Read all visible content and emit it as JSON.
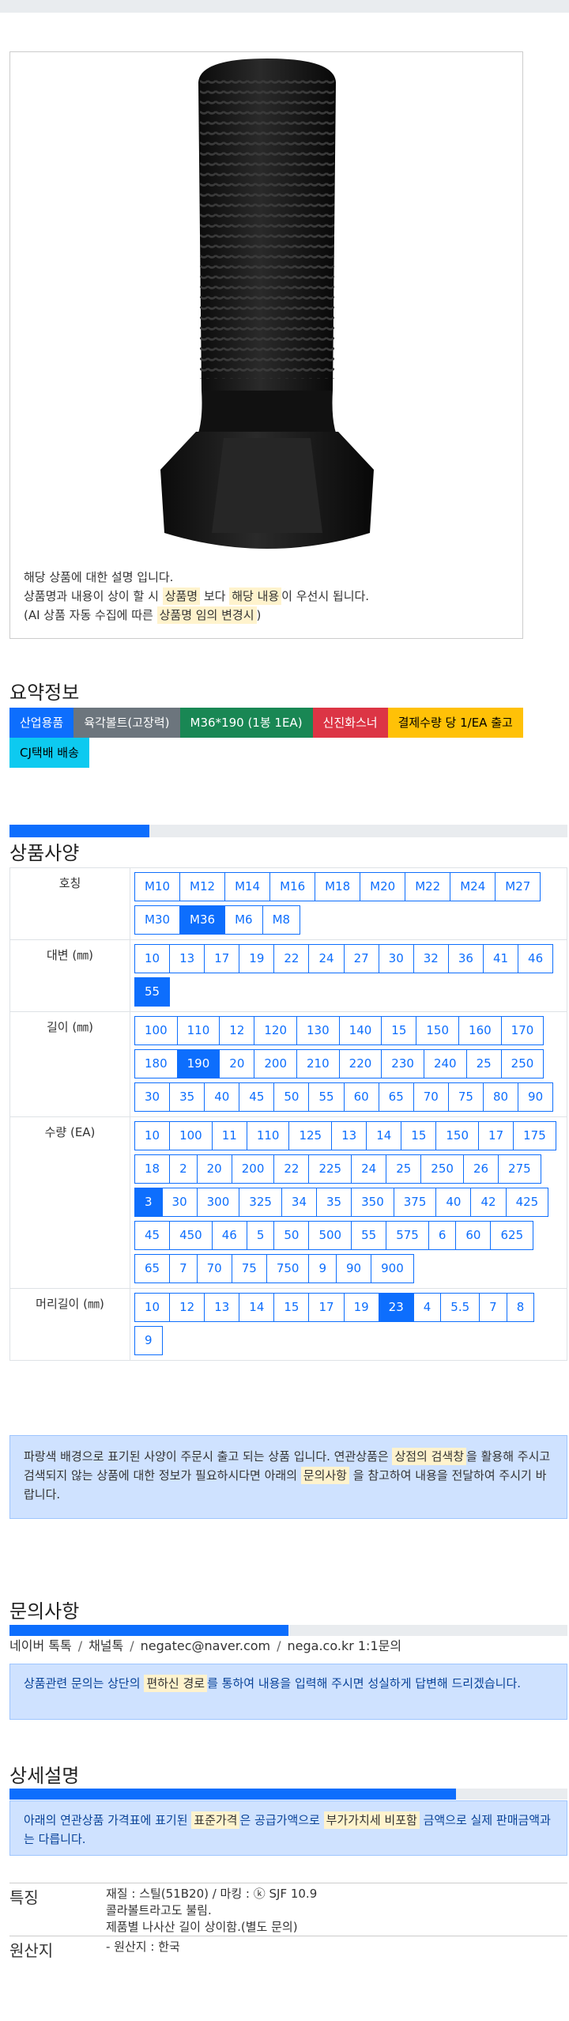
{
  "product_image": {
    "alt": "hex-bolt"
  },
  "notice": {
    "line1": "해당 상품에 대한 설명 입니다.",
    "line2_a": "상품명과 내용이 상이 할 시 ",
    "line2_hl1": "상품명",
    "line2_b": " 보다 ",
    "line2_hl2": "해당 내용",
    "line2_c": "이 우선시 됩니다.",
    "line3_a": "(AI 상품 자동 수집에 따른 ",
    "line3_hl": "상품명 임의 변경시",
    "line3_b": ")"
  },
  "summary": {
    "title": "요약정보",
    "badges": [
      {
        "label": "산업용품",
        "color": "#0d6efd"
      },
      {
        "label": "육각볼트(고장력)",
        "color": "#6c757d"
      },
      {
        "label": "M36*190 (1봉 1EA)",
        "color": "#198754"
      },
      {
        "label": "신진화스너",
        "color": "#dc3545"
      },
      {
        "label": "결제수량 당 1/EA 출고",
        "color": "#ffc107"
      },
      {
        "label": "CJ택배 배송",
        "color": "#0dcaf0"
      }
    ]
  },
  "spec": {
    "title": "상품사양",
    "progress_percent": 25,
    "rows": [
      {
        "label": "호칭",
        "selected": "M36",
        "options": [
          "M10",
          "M12",
          "M14",
          "M16",
          "M18",
          "M20",
          "M22",
          "M24",
          "M27",
          "M30",
          "M36",
          "M6",
          "M8"
        ]
      },
      {
        "label": "대변 (㎜)",
        "selected": "55",
        "options": [
          "10",
          "13",
          "17",
          "19",
          "22",
          "24",
          "27",
          "30",
          "32",
          "36",
          "41",
          "46",
          "55"
        ]
      },
      {
        "label": "길이 (㎜)",
        "selected": "190",
        "options": [
          "100",
          "110",
          "12",
          "120",
          "130",
          "140",
          "15",
          "150",
          "160",
          "170",
          "180",
          "190",
          "20",
          "200",
          "210",
          "220",
          "230",
          "240",
          "25",
          "250",
          "30",
          "35",
          "40",
          "45",
          "50",
          "55",
          "60",
          "65",
          "70",
          "75",
          "80",
          "90"
        ]
      },
      {
        "label": "수량 (EA)",
        "selected": "3",
        "options": [
          "10",
          "100",
          "11",
          "110",
          "125",
          "13",
          "14",
          "15",
          "150",
          "17",
          "175",
          "18",
          "2",
          "20",
          "200",
          "22",
          "225",
          "24",
          "25",
          "250",
          "26",
          "275",
          "3",
          "30",
          "300",
          "325",
          "34",
          "35",
          "350",
          "375",
          "40",
          "42",
          "425",
          "45",
          "450",
          "46",
          "5",
          "50",
          "500",
          "55",
          "575",
          "6",
          "60",
          "625",
          "65",
          "7",
          "70",
          "75",
          "750",
          "9",
          "90",
          "900"
        ]
      },
      {
        "label": "머리길이 (㎜)",
        "selected": "23",
        "options": [
          "10",
          "12",
          "13",
          "14",
          "15",
          "17",
          "19",
          "23",
          "4",
          "5.5",
          "7",
          "8",
          "9"
        ]
      }
    ],
    "note_a": "파랑색 배경으로 표기된 사양이 주문시 출고 되는 상품 입니다. 연관상품은 ",
    "note_hl1": "상점의 검색창",
    "note_b": "을 활용해 주시고 검색되지 않는 상품에 대한 정보가 필요하시다면 아래의 ",
    "note_hl2": "문의사항",
    "note_c": " 을 참고하여 내용을 전달하여 주시기 바랍니다."
  },
  "inquiry": {
    "title": "문의사항",
    "progress_percent": 50,
    "links": [
      "네이버 톡톡",
      "채널톡",
      "negatec@naver.com",
      "nega.co.kr 1:1문의"
    ],
    "separator": "/",
    "note_a": "상품관련 문의는 상단의 ",
    "note_hl": "편하신 경로",
    "note_b": "를 통하여 내용을 입력해 주시면 성실하게 답변해 드리겠습니다."
  },
  "details": {
    "title": "상세설명",
    "progress_percent": 80,
    "note_a": "아래의 연관상품 가격표에 표기된 ",
    "note_hl1": "표준가격",
    "note_b": "은 공급가액으로 ",
    "note_hl2": "부가가치세 비포함",
    "note_c": " 금액으로 실제 판매금액과는 다릅니다.",
    "features_label": "특징",
    "features": [
      "재질 : 스틸(51B20) / 마킹 : ⓚ SJF 10.9",
      "콜라볼트라고도 불림.",
      "제품별 나사산 길이 상이함.(별도 문의)"
    ],
    "origin_label": "원산지",
    "origin": "- 원산지 : 한국"
  }
}
